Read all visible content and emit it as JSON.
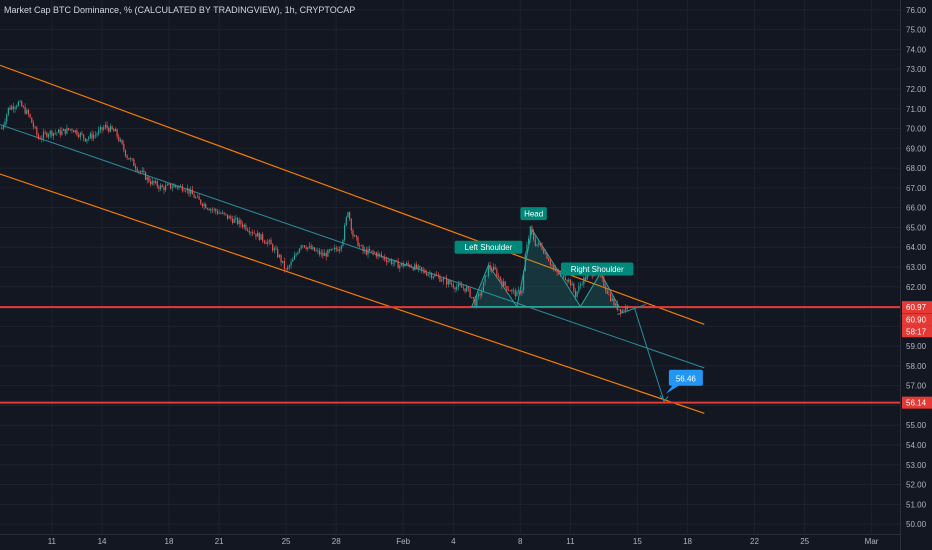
{
  "chart_data": {
    "type": "candlestick",
    "title": "Market Cap BTC Dominance, % (CALCULATED BY TRADINGVIEW), 1h, CRYPTOCAP",
    "ylim": [
      49.5,
      76.5
    ],
    "y_ticks": [
      "50.00",
      "51.00",
      "52.00",
      "53.00",
      "54.00",
      "55.00",
      "56.00",
      "57.00",
      "58.00",
      "59.00",
      "60.00",
      "61.00",
      "62.00",
      "63.00",
      "64.00",
      "65.00",
      "66.00",
      "67.00",
      "68.00",
      "69.00",
      "70.00",
      "71.00",
      "72.00",
      "73.00",
      "74.00",
      "75.00",
      "76.00"
    ],
    "x_ticks": [
      {
        "label": "11",
        "day": 11
      },
      {
        "label": "14",
        "day": 14
      },
      {
        "label": "18",
        "day": 18
      },
      {
        "label": "21",
        "day": 21
      },
      {
        "label": "25",
        "day": 25
      },
      {
        "label": "28",
        "day": 28
      },
      {
        "label": "Feb",
        "day": 32
      },
      {
        "label": "4",
        "day": 35
      },
      {
        "label": "8",
        "day": 39
      },
      {
        "label": "11",
        "day": 42
      },
      {
        "label": "15",
        "day": 46
      },
      {
        "label": "18",
        "day": 49
      },
      {
        "label": "22",
        "day": 53
      },
      {
        "label": "25",
        "day": 56
      },
      {
        "label": "Mar",
        "day": 60
      }
    ],
    "xlim": [
      7.9,
      61.7
    ],
    "price_path": [
      [
        8.0,
        70.0
      ],
      [
        8.4,
        71.0
      ],
      [
        9.0,
        71.3
      ],
      [
        9.6,
        70.7
      ],
      [
        10.2,
        69.5
      ],
      [
        10.8,
        69.8
      ],
      [
        11.5,
        69.8
      ],
      [
        12.2,
        70.0
      ],
      [
        13.0,
        69.5
      ],
      [
        13.6,
        69.7
      ],
      [
        14.2,
        70.1
      ],
      [
        14.8,
        69.8
      ],
      [
        15.5,
        68.6
      ],
      [
        16.2,
        67.9
      ],
      [
        16.9,
        67.3
      ],
      [
        17.6,
        67.0
      ],
      [
        18.3,
        67.1
      ],
      [
        19.0,
        67.0
      ],
      [
        19.7,
        66.4
      ],
      [
        20.4,
        66.0
      ],
      [
        21.1,
        65.7
      ],
      [
        21.8,
        65.4
      ],
      [
        22.5,
        65.1
      ],
      [
        23.3,
        64.6
      ],
      [
        24.0,
        64.2
      ],
      [
        24.6,
        63.5
      ],
      [
        25.0,
        62.8
      ],
      [
        25.4,
        63.3
      ],
      [
        25.9,
        64.2
      ],
      [
        26.5,
        63.9
      ],
      [
        27.2,
        63.6
      ],
      [
        27.8,
        63.8
      ],
      [
        28.2,
        64.0
      ],
      [
        28.4,
        64.5
      ],
      [
        28.7,
        65.9
      ],
      [
        29.0,
        64.6
      ],
      [
        29.6,
        63.8
      ],
      [
        30.3,
        63.7
      ],
      [
        31.0,
        63.4
      ],
      [
        31.7,
        63.1
      ],
      [
        32.4,
        63.1
      ],
      [
        33.1,
        62.8
      ],
      [
        33.8,
        62.6
      ],
      [
        34.5,
        62.3
      ],
      [
        35.2,
        62.0
      ],
      [
        35.8,
        61.9
      ],
      [
        36.3,
        61.2
      ],
      [
        36.7,
        61.8
      ],
      [
        37.1,
        63.0
      ],
      [
        37.5,
        62.8
      ],
      [
        37.9,
        62.2
      ],
      [
        38.3,
        61.9
      ],
      [
        38.8,
        61.6
      ],
      [
        39.1,
        61.9
      ],
      [
        39.3,
        63.6
      ],
      [
        39.6,
        64.9
      ],
      [
        39.9,
        64.2
      ],
      [
        40.3,
        64.0
      ],
      [
        40.7,
        63.4
      ],
      [
        41.1,
        62.7
      ],
      [
        41.6,
        62.6
      ],
      [
        42.0,
        62.2
      ],
      [
        42.3,
        61.6
      ],
      [
        42.7,
        62.3
      ],
      [
        43.1,
        62.6
      ],
      [
        43.5,
        62.8
      ],
      [
        43.9,
        62.3
      ],
      [
        44.3,
        61.6
      ],
      [
        44.7,
        61.0
      ],
      [
        45.1,
        60.8
      ],
      [
        45.5,
        61.1
      ]
    ],
    "lines": [
      {
        "name": "upper-channel",
        "color": "#f57c00",
        "from": [
          7.9,
          73.2
        ],
        "to": [
          50.0,
          60.1
        ]
      },
      {
        "name": "lower-channel",
        "color": "#f57c00",
        "from": [
          7.9,
          67.7
        ],
        "to": [
          50.0,
          55.6
        ]
      },
      {
        "name": "mid-trend",
        "color": "#2a8c9a",
        "from": [
          7.9,
          70.2
        ],
        "to": [
          50.0,
          57.9
        ]
      },
      {
        "name": "support-60.97",
        "color": "#e53935",
        "from": [
          7.9,
          60.97
        ],
        "to": [
          61.7,
          60.97
        ]
      },
      {
        "name": "target-56.14",
        "color": "#e53935",
        "from": [
          7.9,
          56.14
        ],
        "to": [
          61.7,
          56.14
        ]
      },
      {
        "name": "projection-down",
        "color": "#2a8c9a",
        "from": [
          45.8,
          61.0
        ],
        "to": [
          47.6,
          56.2
        ]
      },
      {
        "name": "projection-from-neck",
        "color": "#2a8c9a",
        "from": [
          44.8,
          60.6
        ],
        "to": [
          46.5,
          61.1
        ]
      }
    ],
    "pattern": {
      "color": "#26a69a",
      "points": [
        [
          36.1,
          61.0
        ],
        [
          37.1,
          63.1
        ],
        [
          38.8,
          61.0
        ],
        [
          39.7,
          64.9
        ],
        [
          42.6,
          61.0
        ],
        [
          43.8,
          62.7
        ],
        [
          44.9,
          61.0
        ]
      ]
    },
    "annotations": [
      {
        "label": "Left Shoulder",
        "x": 37.1,
        "y": 64.0
      },
      {
        "label": "Head",
        "x": 39.8,
        "y": 65.7
      },
      {
        "label": "Right Shoulder",
        "x": 43.6,
        "y": 62.9
      }
    ],
    "target_callout": {
      "label": "56.46",
      "x": 48.9,
      "y": 57.4
    },
    "price_tags": [
      {
        "label": "60.97",
        "y": 60.97,
        "color": "#e53935"
      },
      {
        "label": "60.90",
        "y": 60.35,
        "color": "#e53935"
      },
      {
        "label": "58:17",
        "y": 59.75,
        "color": "#e53935"
      },
      {
        "label": "56.14",
        "y": 56.14,
        "color": "#e53935"
      }
    ]
  }
}
